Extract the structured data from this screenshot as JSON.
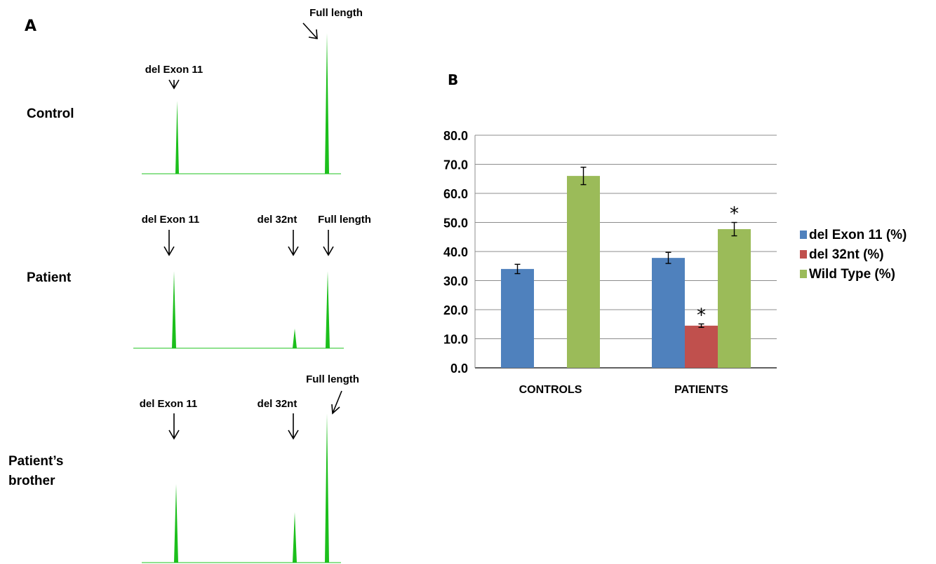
{
  "panel_a": {
    "letter": "A",
    "traces": [
      {
        "sample_label": "Control",
        "peak_labels": [
          "del Exon 11",
          "Full length"
        ]
      },
      {
        "sample_label": "Patient",
        "peak_labels": [
          "del Exon 11",
          "del 32nt",
          "Full length"
        ]
      },
      {
        "sample_label_line1": "Patient’s",
        "sample_label_line2": "brother",
        "peak_labels": [
          "del Exon 11",
          "del 32nt",
          "Full length"
        ]
      }
    ],
    "trace_color": "#1bbf1b"
  },
  "panel_b": {
    "letter": "B",
    "significance_marker": "*"
  },
  "chart_data": {
    "type": "bar",
    "categories": [
      "CONTROLS",
      "PATIENTS"
    ],
    "series": [
      {
        "name": "del Exon 11 (%)",
        "color": "#4f81bd",
        "values": [
          34.0,
          37.8
        ],
        "errors": [
          1.6,
          1.9
        ]
      },
      {
        "name": "del 32nt (%)",
        "color": "#c0504d",
        "values": [
          null,
          14.5
        ],
        "errors": [
          null,
          0.6
        ]
      },
      {
        "name": "Wild Type (%)",
        "color": "#9bbb59",
        "values": [
          66.0,
          47.7
        ],
        "errors": [
          3.0,
          2.3
        ]
      }
    ],
    "significant": [
      {
        "series": "del 32nt (%)",
        "category": "PATIENTS"
      },
      {
        "series": "Wild Type (%)",
        "category": "PATIENTS"
      }
    ],
    "ylim": [
      0,
      80
    ],
    "yticks": [
      "0.0",
      "10.0",
      "20.0",
      "30.0",
      "40.0",
      "50.0",
      "60.0",
      "70.0",
      "80.0"
    ],
    "grid": true,
    "legend_position": "right"
  }
}
